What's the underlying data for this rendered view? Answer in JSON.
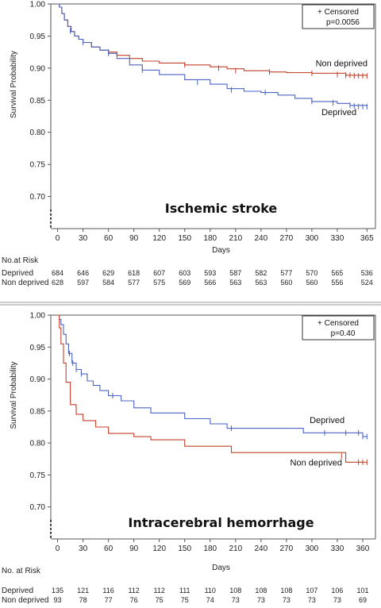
{
  "colors": {
    "deprived": "#4a63c4",
    "non_deprived": "#c0412c",
    "frame": "#555555",
    "separator": "#999999"
  },
  "chart_data": [
    {
      "type": "line",
      "title": "Ischemic stroke",
      "xlabel": "Days",
      "ylabel": "Survival Probability",
      "xlim": [
        -8,
        375
      ],
      "ylim": [
        0.65,
        1.0
      ],
      "x_ticks": [
        0,
        30,
        60,
        90,
        120,
        150,
        180,
        210,
        240,
        270,
        300,
        330,
        365
      ],
      "y_ticks": [
        0.7,
        0.75,
        0.8,
        0.85,
        0.9,
        0.95,
        1.0
      ],
      "y_tick_labels": [
        "0.70",
        "0.75",
        "0.80",
        "0.85",
        "0.90",
        "0.95",
        "1.00"
      ],
      "legend": {
        "line1": "+ Censored",
        "line2": "p=0.0056",
        "placement": "top-right"
      },
      "series": [
        {
          "name": "Non deprived",
          "color_key": "non_deprived",
          "x": [
            0,
            2,
            5,
            8,
            12,
            16,
            20,
            25,
            30,
            40,
            50,
            60,
            70,
            85,
            100,
            120,
            150,
            180,
            200,
            220,
            250,
            270,
            300,
            340,
            365
          ],
          "y": [
            1.0,
            0.995,
            0.985,
            0.975,
            0.965,
            0.957,
            0.95,
            0.945,
            0.94,
            0.933,
            0.928,
            0.925,
            0.92,
            0.915,
            0.911,
            0.908,
            0.905,
            0.902,
            0.899,
            0.896,
            0.894,
            0.893,
            0.892,
            0.889,
            0.888
          ],
          "censored_x": [
            60,
            150,
            190,
            210,
            250,
            300,
            330,
            340,
            345,
            350,
            355,
            360,
            365
          ],
          "censored_y": [
            0.925,
            0.905,
            0.9,
            0.896,
            0.894,
            0.892,
            0.89,
            0.889,
            0.889,
            0.888,
            0.888,
            0.888,
            0.888
          ]
        },
        {
          "name": "Deprived",
          "color_key": "deprived",
          "x": [
            0,
            2,
            5,
            8,
            12,
            16,
            20,
            25,
            30,
            40,
            50,
            60,
            70,
            85,
            100,
            120,
            150,
            180,
            200,
            220,
            240,
            260,
            280,
            300,
            330,
            345,
            365
          ],
          "y": [
            1.0,
            0.995,
            0.985,
            0.975,
            0.965,
            0.957,
            0.95,
            0.945,
            0.94,
            0.933,
            0.928,
            0.923,
            0.915,
            0.905,
            0.897,
            0.89,
            0.882,
            0.875,
            0.868,
            0.864,
            0.862,
            0.858,
            0.853,
            0.848,
            0.845,
            0.842,
            0.84
          ],
          "censored_x": [
            15,
            30,
            60,
            100,
            165,
            205,
            245,
            300,
            325,
            345,
            350,
            355,
            360,
            365
          ],
          "censored_y": [
            0.958,
            0.94,
            0.923,
            0.897,
            0.878,
            0.866,
            0.862,
            0.848,
            0.846,
            0.842,
            0.841,
            0.84,
            0.84,
            0.84
          ]
        }
      ],
      "curve_labels": [
        {
          "text": "Non deprived",
          "x": 335,
          "y": 0.903
        },
        {
          "text": "Deprived",
          "x": 332,
          "y": 0.827
        }
      ],
      "risk_table": {
        "title": "No.at Risk",
        "days": [
          0,
          30,
          60,
          90,
          120,
          150,
          180,
          210,
          240,
          270,
          300,
          330,
          365
        ],
        "rows": [
          {
            "label": "Deprived",
            "values": [
              "684",
              "646",
              "629",
              "618",
              "607",
              "603",
              "593",
              "587",
              "582",
              "577",
              "570",
              "565",
              "536"
            ]
          },
          {
            "label": "Non deprived",
            "values": [
              "628",
              "597",
              "584",
              "577",
              "575",
              "569",
              "566",
              "563",
              "563",
              "560",
              "560",
              "556",
              "524"
            ]
          }
        ]
      }
    },
    {
      "type": "line",
      "title": "Intracerebral hemorrhage",
      "xlabel": "Days",
      "ylabel": "Survival Probability",
      "xlim": [
        -8,
        375
      ],
      "ylim": [
        0.65,
        1.0
      ],
      "x_ticks": [
        0,
        30,
        60,
        90,
        120,
        150,
        180,
        210,
        240,
        270,
        300,
        330,
        360
      ],
      "y_ticks": [
        0.7,
        0.75,
        0.8,
        0.85,
        0.9,
        0.95,
        1.0
      ],
      "y_tick_labels": [
        "0.70",
        "0.75",
        "0.80",
        "0.85",
        "0.90",
        "0.95",
        "1.00"
      ],
      "legend": {
        "line1": "+ Censored",
        "line2": "p=0.40",
        "placement": "top-right"
      },
      "series": [
        {
          "name": "Deprived",
          "color_key": "deprived",
          "x": [
            0,
            2,
            4,
            7,
            10,
            13,
            17,
            22,
            28,
            35,
            42,
            50,
            60,
            75,
            90,
            110,
            150,
            180,
            200,
            240,
            290,
            340,
            360,
            365
          ],
          "y": [
            1.0,
            0.993,
            0.985,
            0.97,
            0.955,
            0.94,
            0.925,
            0.915,
            0.908,
            0.897,
            0.89,
            0.882,
            0.874,
            0.866,
            0.855,
            0.847,
            0.838,
            0.83,
            0.823,
            0.823,
            0.816,
            0.816,
            0.81,
            0.81
          ],
          "censored_x": [
            14,
            18,
            22,
            28,
            65,
            205,
            315,
            340,
            355,
            360,
            365
          ],
          "censored_y": [
            0.94,
            0.925,
            0.915,
            0.908,
            0.874,
            0.823,
            0.816,
            0.816,
            0.816,
            0.81,
            0.81
          ],
          "label": "Deprived"
        },
        {
          "name": "Non deprived",
          "color_key": "non_deprived",
          "x": [
            0,
            2,
            4,
            7,
            10,
            15,
            22,
            30,
            45,
            60,
            90,
            110,
            150,
            205,
            340,
            365
          ],
          "y": [
            1.0,
            0.98,
            0.955,
            0.925,
            0.895,
            0.86,
            0.845,
            0.835,
            0.825,
            0.815,
            0.81,
            0.805,
            0.795,
            0.785,
            0.77,
            0.77
          ],
          "censored_x": [
            335,
            355,
            360,
            365
          ],
          "censored_y": [
            0.78,
            0.77,
            0.77,
            0.77
          ],
          "label": "Non deprived"
        }
      ],
      "curve_labels": [
        {
          "text": "Deprived",
          "x": 318,
          "y": 0.831
        },
        {
          "text": "Non deprived",
          "x": 305,
          "y": 0.765
        }
      ],
      "risk_table": {
        "title": "No. at Risk",
        "days": [
          0,
          30,
          60,
          90,
          120,
          150,
          180,
          210,
          240,
          270,
          300,
          330,
          360
        ],
        "rows": [
          {
            "label": "Deprived",
            "values": [
              "135",
              "121",
              "116",
              "112",
              "112",
              "111",
              "110",
              "108",
              "108",
              "108",
              "107",
              "106",
              "101"
            ]
          },
          {
            "label": "Non deprived",
            "values": [
              "93",
              "78",
              "77",
              "76",
              "75",
              "75",
              "74",
              "73",
              "73",
              "73",
              "73",
              "73",
              "69"
            ]
          }
        ]
      }
    }
  ]
}
